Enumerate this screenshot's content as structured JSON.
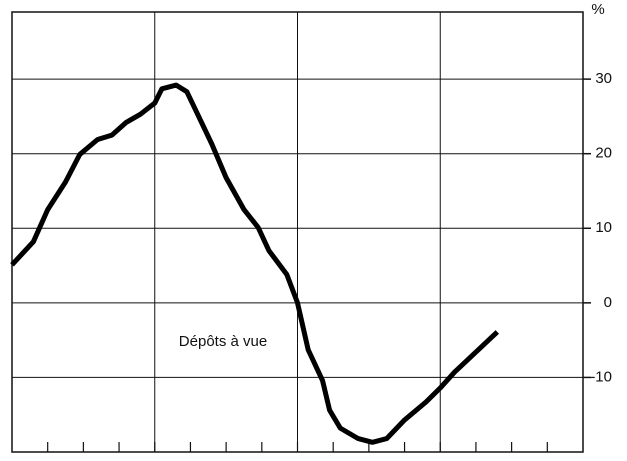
{
  "chart_data": {
    "type": "line",
    "y_unit": "%",
    "annotation": "Dépôts à vue",
    "x": [
      0,
      0.6,
      1.0,
      1.5,
      1.9,
      2.4,
      2.8,
      3.2,
      3.6,
      4.0,
      4.2,
      4.6,
      4.9,
      5.2,
      5.6,
      6.0,
      6.5,
      6.9,
      7.2,
      7.7,
      8.0,
      8.3,
      8.7,
      8.9,
      9.2,
      9.7,
      10.1,
      10.5,
      11.0,
      11.6,
      12.0,
      12.4,
      13.0,
      13.6
    ],
    "values": [
      5.1,
      8.2,
      12.5,
      16.2,
      19.9,
      21.9,
      22.5,
      24.2,
      25.3,
      26.8,
      28.7,
      29.2,
      28.3,
      25.3,
      21.3,
      16.8,
      12.5,
      10.1,
      7.0,
      3.8,
      0,
      -6.3,
      -10.4,
      -14.4,
      -16.8,
      -18.2,
      -18.7,
      -18.2,
      -15.7,
      -13.3,
      -11.4,
      -9.3,
      -6.6,
      -3.9
    ],
    "color": "#000000",
    "xlim": [
      0,
      16
    ],
    "xticks": [
      1,
      2,
      3,
      4,
      5,
      6,
      7,
      8,
      9,
      10,
      11,
      12,
      13,
      14,
      15
    ],
    "xgrid": [
      4,
      8,
      12
    ],
    "ylim": [
      -20,
      39
    ],
    "yticks": [
      -10,
      0,
      10,
      20,
      30
    ],
    "grid": true
  }
}
